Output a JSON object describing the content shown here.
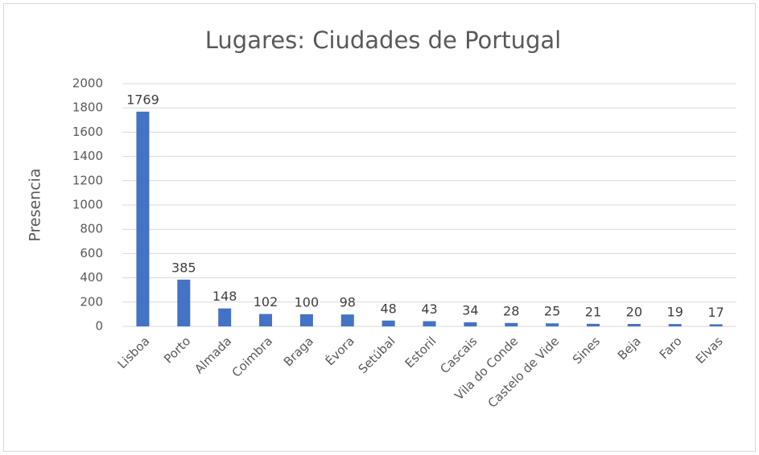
{
  "chart_data": {
    "type": "bar",
    "title": "Lugares: Ciudades de Portugal",
    "ylabel": "Presencia",
    "categories": [
      "Lisboa",
      "Porto",
      "Almada",
      "Coimbra",
      "Braga",
      "Évora",
      "Setúbal",
      "Estoril",
      "Cascais",
      "Vila do Conde",
      "Castelo de Vide",
      "Sines",
      "Beja",
      "Faro",
      "Elvas"
    ],
    "values": [
      1769,
      385,
      148,
      102,
      100,
      98,
      48,
      43,
      34,
      28,
      25,
      21,
      20,
      19,
      17
    ],
    "color": "#4472c4",
    "ylim": [
      0,
      2000
    ],
    "yticks": [
      0,
      200,
      400,
      600,
      800,
      1000,
      1200,
      1400,
      1600,
      1800,
      2000
    ],
    "grid": true
  }
}
